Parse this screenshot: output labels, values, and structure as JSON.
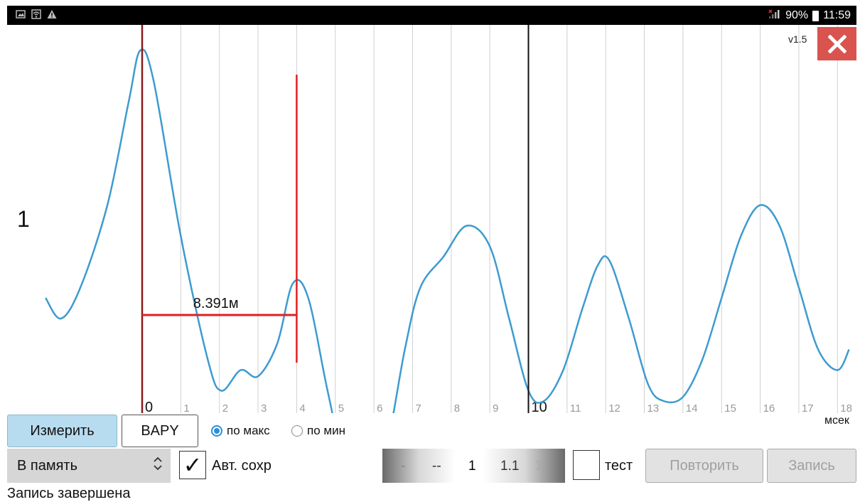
{
  "status_bar": {
    "left_icons": [
      "image-icon",
      "wifi-icon",
      "warning-icon"
    ],
    "battery": "90%",
    "time": "11:59"
  },
  "version": "v1.5",
  "channel_label": "1",
  "measurement_label": "8.391м",
  "unit_label": "мсек",
  "chart_data": {
    "type": "line",
    "x_ticks": [
      "0",
      "1",
      "2",
      "3",
      "4",
      "5",
      "6",
      "7",
      "8",
      "9",
      "10",
      "11",
      "12",
      "13",
      "14",
      "15",
      "16",
      "17",
      "18"
    ],
    "x_unit": "мсек",
    "grid": true,
    "marker_lines_x": [
      0,
      4,
      10
    ],
    "series": [
      {
        "color": "#3d9bd0",
        "points": [
          [
            -2.5,
            0.4
          ],
          [
            -2.1,
            0.3
          ],
          [
            -1.6,
            0.45
          ],
          [
            -0.9,
            0.85
          ],
          [
            -0.35,
            1.35
          ],
          [
            -0.05,
            1.6
          ],
          [
            0.3,
            1.45
          ],
          [
            1.0,
            0.7
          ],
          [
            1.7,
            0.1
          ],
          [
            2.05,
            -0.05
          ],
          [
            2.55,
            0.05
          ],
          [
            3.0,
            0.02
          ],
          [
            3.5,
            0.18
          ],
          [
            3.9,
            0.47
          ],
          [
            4.3,
            0.4
          ],
          [
            4.8,
            -0.05
          ],
          [
            5.3,
            -0.45
          ],
          [
            5.8,
            -0.55
          ],
          [
            6.3,
            -0.35
          ],
          [
            6.8,
            0.15
          ],
          [
            7.2,
            0.45
          ],
          [
            7.8,
            0.6
          ],
          [
            8.4,
            0.75
          ],
          [
            9.0,
            0.65
          ],
          [
            9.5,
            0.3
          ],
          [
            10.0,
            -0.05
          ],
          [
            10.4,
            -0.1
          ],
          [
            10.9,
            0.05
          ],
          [
            11.4,
            0.35
          ],
          [
            11.8,
            0.56
          ],
          [
            12.1,
            0.58
          ],
          [
            12.6,
            0.3
          ],
          [
            13.1,
            -0.02
          ],
          [
            13.5,
            -0.1
          ],
          [
            14.0,
            -0.08
          ],
          [
            14.5,
            0.1
          ],
          [
            15.0,
            0.4
          ],
          [
            15.5,
            0.7
          ],
          [
            16.0,
            0.85
          ],
          [
            16.5,
            0.75
          ],
          [
            17.0,
            0.45
          ],
          [
            17.5,
            0.15
          ],
          [
            18.0,
            0.05
          ],
          [
            18.3,
            0.15
          ]
        ]
      }
    ]
  },
  "buttons": {
    "measure": "Измерить",
    "bapy": "BAPY",
    "repeat": "Повторить",
    "record": "Запись"
  },
  "radio": {
    "by_max": "по макс",
    "by_min": "по мин",
    "selected": "by_max"
  },
  "memory_select": {
    "value": "В память"
  },
  "autosave": {
    "label": "Авт. сохр",
    "checked": true,
    "check_glyph": "✓"
  },
  "picker": {
    "values": [
      "-",
      "--",
      "1",
      "1.1",
      "1"
    ]
  },
  "test": {
    "label": "тест",
    "checked": false
  },
  "status_text": "Запись завершена"
}
